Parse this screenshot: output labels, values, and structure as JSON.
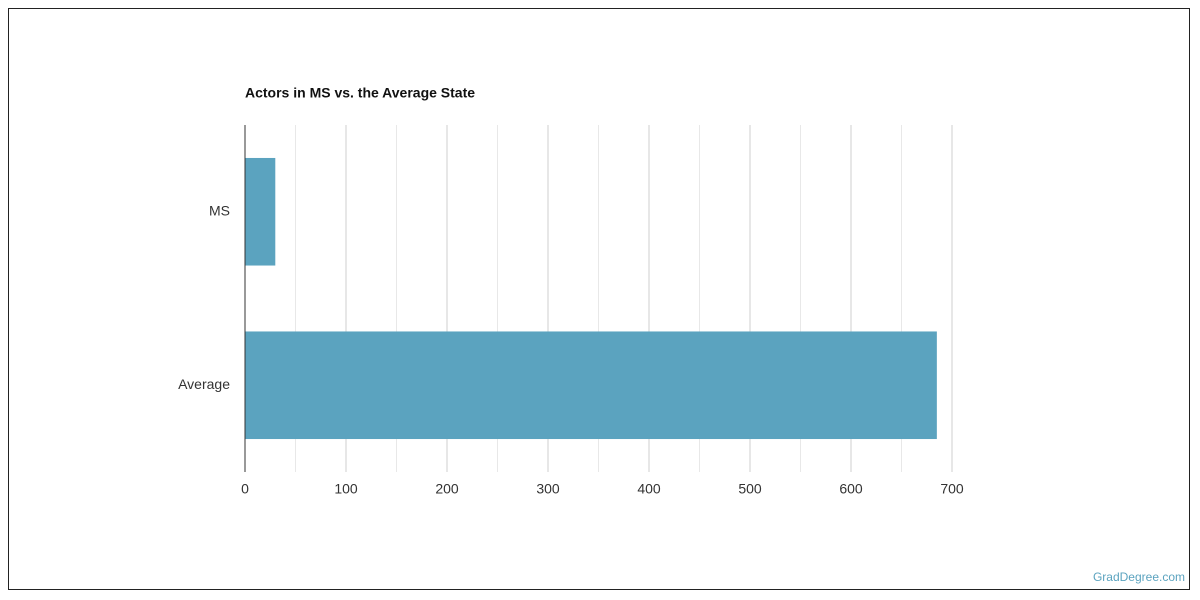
{
  "chart_data": {
    "type": "bar",
    "orientation": "horizontal",
    "title": "Actors in MS vs. the Average State",
    "categories": [
      "MS",
      "Average"
    ],
    "values": [
      30,
      685
    ],
    "color": "#5ba3bf",
    "xlim": [
      0,
      700
    ],
    "xticks": [
      0,
      100,
      200,
      300,
      400,
      500,
      600,
      700
    ],
    "grid": true,
    "minor_grid": true,
    "source": "GradDegree.com"
  }
}
